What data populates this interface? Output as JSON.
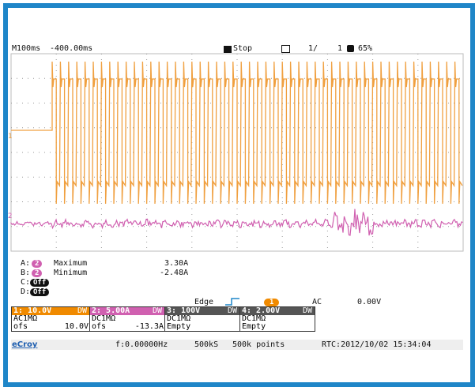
{
  "top_bar": {
    "timebase": "M100ms",
    "offset": "-400.00ms",
    "status": "Stop",
    "page": "1/",
    "count": "1",
    "zoom": "65%"
  },
  "trace_markers": [
    "1",
    "2"
  ],
  "measurements": [
    {
      "slot": "A:",
      "channel": "2",
      "name": "Maximum",
      "value": "3.30A"
    },
    {
      "slot": "B:",
      "channel": "2",
      "name": "Minimum",
      "value": "-2.48A"
    },
    {
      "slot": "C:",
      "state": "Off"
    },
    {
      "slot": "D:",
      "state": "Off"
    }
  ],
  "trigger": {
    "mode": "Edge",
    "source": "1",
    "coupling": "AC",
    "level": "0.00V"
  },
  "channels": [
    {
      "header": "1: 10.0V",
      "tag": "DW",
      "coupling": "AC1MΩ",
      "offset_label": "ofs",
      "offset": "10.0V"
    },
    {
      "header": "2: 5.00A",
      "tag": "DW",
      "coupling": "DC1MΩ",
      "offset_label": "ofs",
      "offset": "-13.3A"
    },
    {
      "header": "3: 100V",
      "tag": "DW",
      "coupling": "DC1MΩ",
      "offset": "Empty"
    },
    {
      "header": "4: 2.00V",
      "tag": "DW",
      "coupling": "DC1MΩ",
      "offset": "Empty"
    }
  ],
  "status_bar": {
    "brand": "eCroy",
    "frequency": "f:0.00000Hz",
    "sample_rate": "500kS",
    "points": "500k points",
    "rtc": "RTC:2012/10/02 15:34:04"
  }
}
